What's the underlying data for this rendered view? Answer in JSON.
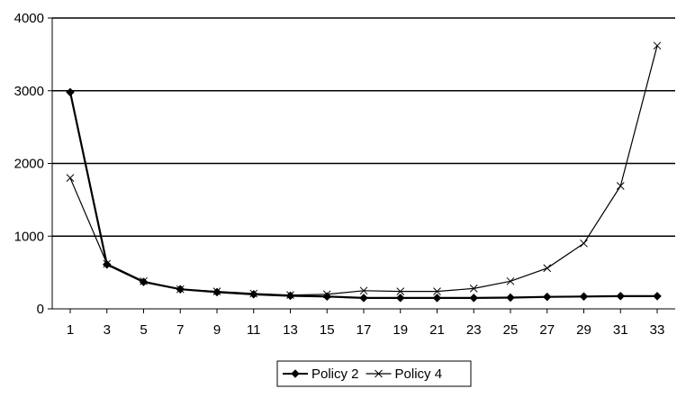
{
  "chart_data": {
    "type": "line",
    "title": "",
    "xlabel": "",
    "ylabel": "",
    "x": [
      1,
      3,
      5,
      7,
      9,
      11,
      13,
      15,
      17,
      19,
      21,
      23,
      25,
      27,
      29,
      31,
      33
    ],
    "ylim": [
      0,
      4000
    ],
    "yticks": [
      0,
      1000,
      2000,
      3000,
      4000
    ],
    "grid": "horizontal",
    "legend_position": "bottom",
    "series": [
      {
        "name": "Policy 2",
        "marker": "diamond",
        "color": "#000000",
        "values": [
          2980,
          610,
          370,
          270,
          230,
          200,
          180,
          170,
          150,
          150,
          150,
          150,
          155,
          165,
          170,
          175,
          175
        ]
      },
      {
        "name": "Policy 4",
        "marker": "x",
        "color": "#000000",
        "values": [
          1800,
          620,
          380,
          270,
          240,
          210,
          190,
          200,
          250,
          240,
          240,
          280,
          380,
          560,
          900,
          1690,
          3620
        ]
      }
    ]
  }
}
